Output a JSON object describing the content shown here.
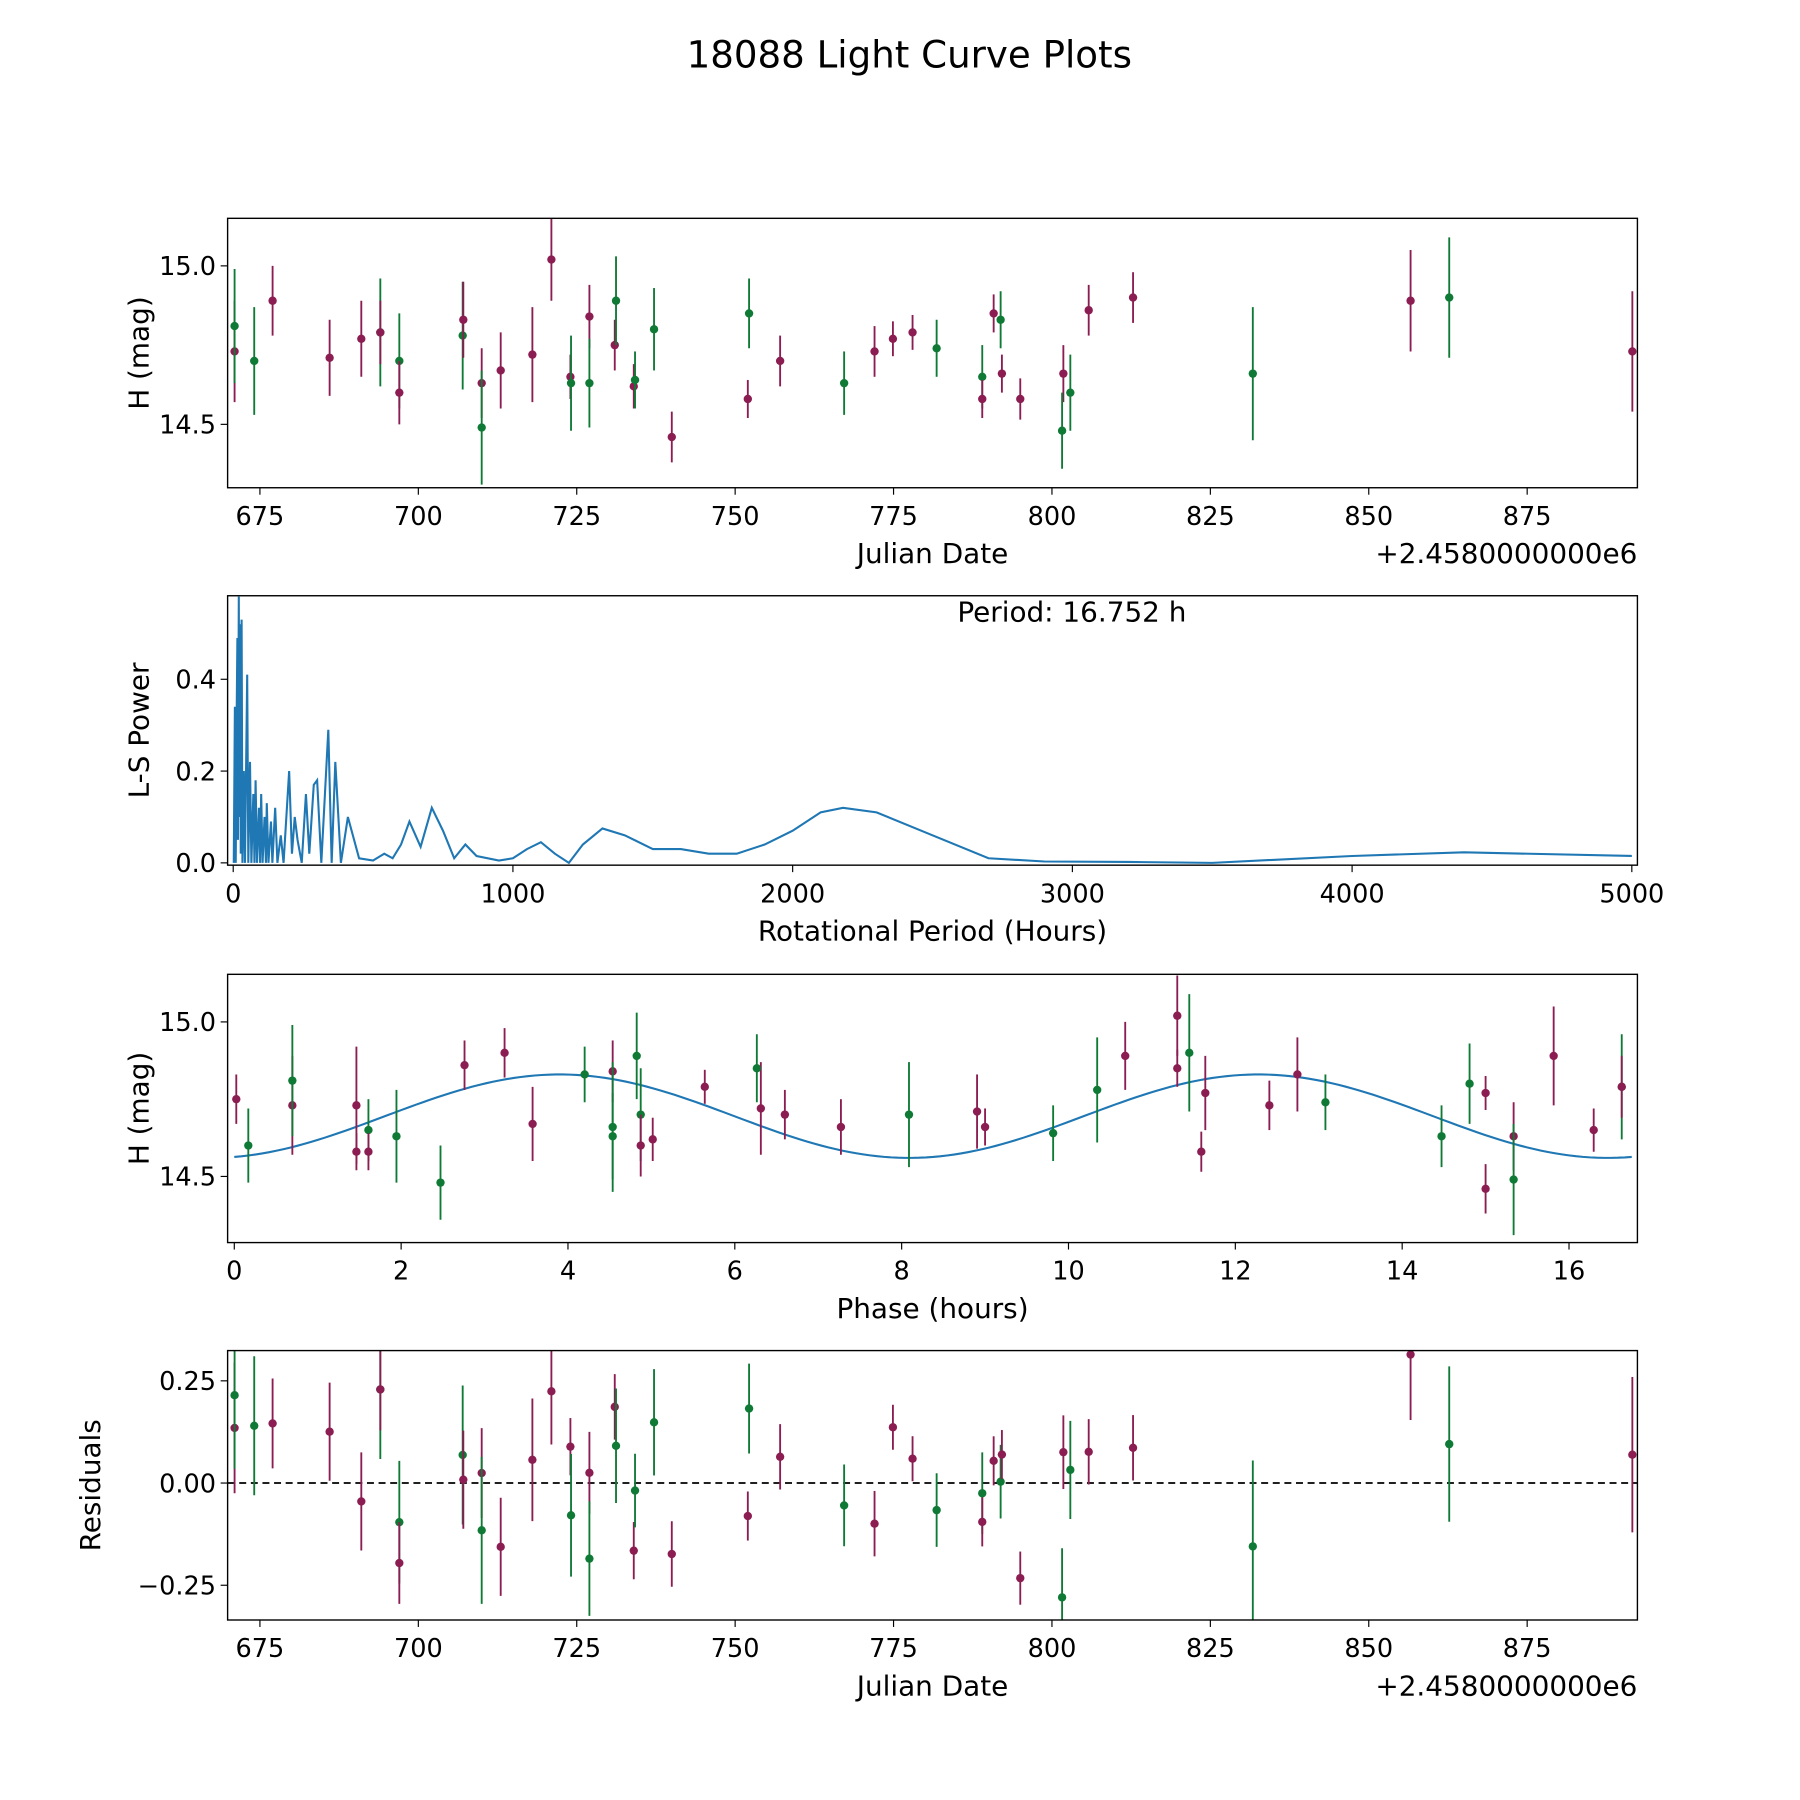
{
  "title": "18088 Light Curve Plots",
  "colors": {
    "band_a": "#8b1d52",
    "band_b": "#0f7a35",
    "model": "#1f77b4"
  },
  "chart_data": [
    {
      "id": "lightcurve",
      "type": "scatter",
      "xlabel": "Julian Date",
      "ylabel": "H (mag)",
      "offset_text": "+2.4580000000e6",
      "xlim": [
        669.9,
        892.4
      ],
      "ylim": [
        14.3,
        15.15
      ],
      "y_inverted": false,
      "xticks": [
        675,
        700,
        725,
        750,
        775,
        800,
        825,
        850,
        875
      ],
      "yticks": [
        14.5,
        15.0
      ],
      "ytick_labels": [
        "14.5",
        "15.0"
      ],
      "points": [
        [
          671.0,
          14.73,
          0.16,
          "a"
        ],
        [
          671.0,
          14.81,
          0.18,
          "b"
        ],
        [
          674.1,
          14.7,
          0.17,
          "b"
        ],
        [
          677.0,
          14.89,
          0.11,
          "a"
        ],
        [
          686.0,
          14.71,
          0.12,
          "a"
        ],
        [
          691.0,
          14.77,
          0.12,
          "a"
        ],
        [
          694.0,
          14.79,
          0.17,
          "b"
        ],
        [
          694.0,
          14.79,
          0.1,
          "a"
        ],
        [
          697.0,
          14.7,
          0.15,
          "b"
        ],
        [
          697.0,
          14.6,
          0.1,
          "a"
        ],
        [
          707.0,
          14.78,
          0.17,
          "b"
        ],
        [
          707.1,
          14.83,
          0.12,
          "a"
        ],
        [
          710.0,
          14.63,
          0.11,
          "a"
        ],
        [
          710.0,
          14.49,
          0.18,
          "b"
        ],
        [
          713.0,
          14.67,
          0.12,
          "a"
        ],
        [
          718.0,
          14.72,
          0.15,
          "a"
        ],
        [
          721.0,
          15.02,
          0.13,
          "a"
        ],
        [
          724.0,
          14.65,
          0.07,
          "a"
        ],
        [
          724.1,
          14.63,
          0.15,
          "b"
        ],
        [
          727.0,
          14.84,
          0.1,
          "a"
        ],
        [
          727.0,
          14.63,
          0.14,
          "b"
        ],
        [
          731.0,
          14.75,
          0.08,
          "a"
        ],
        [
          731.2,
          14.89,
          0.14,
          "b"
        ],
        [
          734.0,
          14.62,
          0.07,
          "a"
        ],
        [
          734.2,
          14.64,
          0.09,
          "b"
        ],
        [
          737.2,
          14.8,
          0.13,
          "b"
        ],
        [
          740.0,
          14.46,
          0.08,
          "a"
        ],
        [
          752.0,
          14.58,
          0.06,
          "a"
        ],
        [
          752.2,
          14.85,
          0.11,
          "b"
        ],
        [
          757.1,
          14.7,
          0.08,
          "a"
        ],
        [
          767.2,
          14.63,
          0.1,
          "b"
        ],
        [
          772.0,
          14.73,
          0.08,
          "a"
        ],
        [
          774.9,
          14.77,
          0.055,
          "a"
        ],
        [
          778.0,
          14.79,
          0.055,
          "a"
        ],
        [
          781.8,
          14.74,
          0.09,
          "b"
        ],
        [
          789.0,
          14.65,
          0.1,
          "b"
        ],
        [
          789.0,
          14.58,
          0.06,
          "a"
        ],
        [
          790.8,
          14.85,
          0.06,
          "a"
        ],
        [
          791.9,
          14.83,
          0.09,
          "b"
        ],
        [
          792.1,
          14.66,
          0.06,
          "a"
        ],
        [
          795.0,
          14.58,
          0.065,
          "a"
        ],
        [
          801.8,
          14.66,
          0.09,
          "a"
        ],
        [
          801.6,
          14.48,
          0.12,
          "b"
        ],
        [
          802.9,
          14.6,
          0.12,
          "b"
        ],
        [
          805.8,
          14.86,
          0.08,
          "a"
        ],
        [
          812.8,
          14.9,
          0.08,
          "a"
        ],
        [
          831.7,
          14.66,
          0.21,
          "b"
        ],
        [
          856.6,
          14.89,
          0.16,
          "a"
        ],
        [
          862.7,
          14.9,
          0.19,
          "b"
        ],
        [
          891.6,
          14.73,
          0.19,
          "a"
        ]
      ]
    },
    {
      "id": "periodogram",
      "type": "line",
      "xlabel": "Rotational Period (Hours)",
      "ylabel": "L-S Power",
      "annotation": "Period: 16.752 h",
      "xlim": [
        -20,
        5020
      ],
      "ylim": [
        -0.005,
        0.582
      ],
      "xticks": [
        0,
        1000,
        2000,
        3000,
        4000,
        5000
      ],
      "yticks": [
        0.0,
        0.2,
        0.4
      ],
      "ytick_labels": [
        "0.0",
        "0.2",
        "0.4"
      ],
      "points": [
        [
          2,
          0.0
        ],
        [
          6,
          0.34
        ],
        [
          9,
          0.0
        ],
        [
          12,
          0.3
        ],
        [
          15,
          0.49
        ],
        [
          17,
          0.05
        ],
        [
          20,
          0.58
        ],
        [
          22,
          0.1
        ],
        [
          25,
          0.52
        ],
        [
          27,
          0.02
        ],
        [
          30,
          0.53
        ],
        [
          33,
          0.0
        ],
        [
          38,
          0.2
        ],
        [
          42,
          0.0
        ],
        [
          50,
          0.41
        ],
        [
          54,
          0.0
        ],
        [
          60,
          0.22
        ],
        [
          65,
          0.0
        ],
        [
          72,
          0.15
        ],
        [
          76,
          0.0
        ],
        [
          80,
          0.18
        ],
        [
          85,
          0.0
        ],
        [
          92,
          0.12
        ],
        [
          96,
          0.0
        ],
        [
          100,
          0.15
        ],
        [
          105,
          0.0
        ],
        [
          112,
          0.1
        ],
        [
          117,
          0.0
        ],
        [
          120,
          0.13
        ],
        [
          126,
          0.0
        ],
        [
          135,
          0.09
        ],
        [
          140,
          0.0
        ],
        [
          150,
          0.12
        ],
        [
          158,
          0.0
        ],
        [
          170,
          0.06
        ],
        [
          180,
          0.0
        ],
        [
          200,
          0.2
        ],
        [
          210,
          0.02
        ],
        [
          220,
          0.1
        ],
        [
          230,
          0.05
        ],
        [
          245,
          0.0
        ],
        [
          260,
          0.15
        ],
        [
          272,
          0.02
        ],
        [
          288,
          0.17
        ],
        [
          300,
          0.18
        ],
        [
          315,
          0.0
        ],
        [
          340,
          0.29
        ],
        [
          352,
          0.0
        ],
        [
          365,
          0.22
        ],
        [
          385,
          0.0
        ],
        [
          410,
          0.1
        ],
        [
          450,
          0.01
        ],
        [
          500,
          0.005
        ],
        [
          540,
          0.02
        ],
        [
          570,
          0.01
        ],
        [
          600,
          0.04
        ],
        [
          630,
          0.09
        ],
        [
          670,
          0.035
        ],
        [
          710,
          0.12
        ],
        [
          750,
          0.07
        ],
        [
          790,
          0.01
        ],
        [
          830,
          0.04
        ],
        [
          870,
          0.015
        ],
        [
          950,
          0.005
        ],
        [
          1000,
          0.01
        ],
        [
          1050,
          0.03
        ],
        [
          1100,
          0.045
        ],
        [
          1150,
          0.02
        ],
        [
          1200,
          0.0
        ],
        [
          1250,
          0.04
        ],
        [
          1320,
          0.075
        ],
        [
          1400,
          0.06
        ],
        [
          1500,
          0.03
        ],
        [
          1600,
          0.03
        ],
        [
          1700,
          0.02
        ],
        [
          1800,
          0.02
        ],
        [
          1900,
          0.04
        ],
        [
          2000,
          0.07
        ],
        [
          2100,
          0.11
        ],
        [
          2180,
          0.12
        ],
        [
          2300,
          0.11
        ],
        [
          2500,
          0.06
        ],
        [
          2700,
          0.01
        ],
        [
          2900,
          0.003
        ],
        [
          3200,
          0.002
        ],
        [
          3500,
          0.0
        ],
        [
          4000,
          0.015
        ],
        [
          4400,
          0.023
        ],
        [
          5000,
          0.015
        ]
      ]
    },
    {
      "id": "phased",
      "type": "scatter",
      "xlabel": "Phase (hours)",
      "ylabel": "H (mag)",
      "xlim": [
        -0.08,
        16.82
      ],
      "ylim": [
        14.286,
        15.154
      ],
      "xticks": [
        0,
        2,
        4,
        6,
        8,
        10,
        12,
        14,
        16
      ],
      "yticks": [
        14.5,
        15.0
      ],
      "ytick_labels": [
        "14.5",
        "15.0"
      ],
      "period_hours": 16.752,
      "epoch_jd": 670.971,
      "model": {
        "mean": 14.695,
        "amplitude": 0.135,
        "phase_rad": -1.355
      }
    },
    {
      "id": "residuals",
      "type": "scatter",
      "xlabel": "Julian Date",
      "ylabel": "Residuals",
      "offset_text": "+2.4580000000e6",
      "xlim": [
        669.9,
        892.4
      ],
      "ylim": [
        -0.335,
        0.324
      ],
      "xticks": [
        675,
        700,
        725,
        750,
        775,
        800,
        825,
        850,
        875
      ],
      "yticks": [
        -0.25,
        0.0,
        0.25
      ],
      "ytick_labels": [
        "−0.25",
        "0.00",
        "0.25"
      ]
    }
  ]
}
